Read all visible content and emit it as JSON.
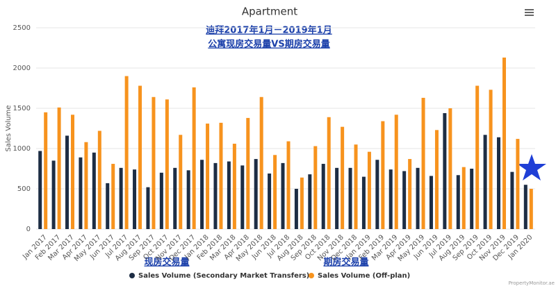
{
  "chart_data": {
    "type": "bar",
    "title": "Apartment",
    "annotations": [
      "迪拜2017年1月－2019年1月",
      "公寓现房交易量VS期房交易量",
      "现房交易量",
      "期房交易量"
    ],
    "source": "PropertyMonitor.ae",
    "y_label": "Sales Volume",
    "categories": [
      "Jan 2017",
      "Feb 2017",
      "Mar 2017",
      "Apr 2017",
      "May 2017",
      "Jun 2017",
      "Jul 2017",
      "Aug 2017",
      "Sep 2017",
      "Oct 2017",
      "Nov 2017",
      "Dec 2017",
      "Jan 2018",
      "Feb 2018",
      "Mar 2018",
      "Apr 2018",
      "May 2018",
      "Jun 2018",
      "Jul 2018",
      "Aug 2018",
      "Sep 2018",
      "Oct 2018",
      "Nov 2018",
      "Dec 2018",
      "Jan 2019",
      "Feb 2019",
      "Mar 2019",
      "Apr 2019",
      "May 2019",
      "Jun 2019",
      "Jul 2019",
      "Aug 2019",
      "Sep 2019",
      "Oct 2019",
      "Nov 2019",
      "Dec 2019",
      "Jan 2020"
    ],
    "series": [
      {
        "name": "Sales Volume (Secondary Market Transfers)",
        "color": "#1d2d44",
        "values": [
          970,
          850,
          1160,
          890,
          950,
          570,
          760,
          740,
          520,
          700,
          760,
          730,
          860,
          820,
          840,
          790,
          870,
          690,
          820,
          500,
          680,
          810,
          760,
          760,
          650,
          860,
          740,
          720,
          760,
          660,
          1440,
          670,
          750,
          1170,
          1140,
          710,
          550
        ]
      },
      {
        "name": "Sales Volume (Off-plan)",
        "color": "#f7931e",
        "values": [
          1450,
          1510,
          1420,
          1080,
          1220,
          810,
          1900,
          1780,
          1640,
          1610,
          1170,
          1760,
          1310,
          1320,
          1060,
          1380,
          1640,
          920,
          1090,
          640,
          1030,
          1390,
          1270,
          1050,
          960,
          1340,
          1420,
          870,
          1630,
          1230,
          1500,
          770,
          1780,
          1730,
          2130,
          1120,
          500
        ]
      }
    ],
    "ylim": [
      0,
      2500
    ],
    "yticks": [
      0,
      500,
      1000,
      1500,
      2000,
      2500
    ],
    "grid": true
  }
}
